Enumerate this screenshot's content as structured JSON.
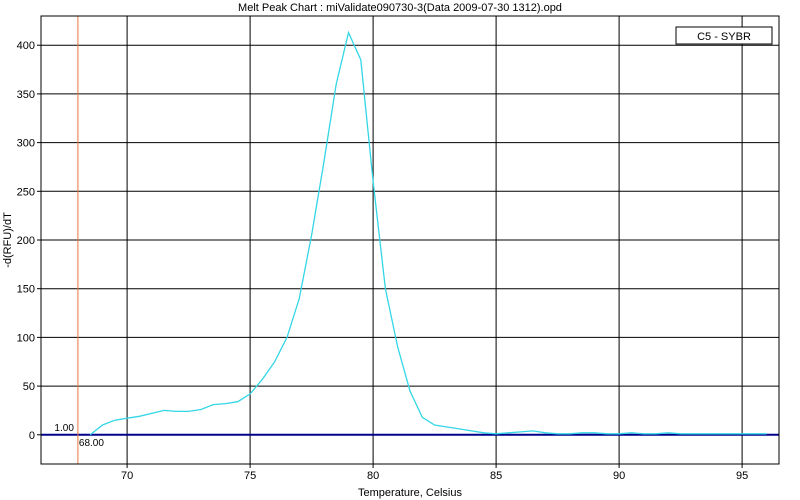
{
  "chart_data": {
    "type": "line",
    "title": "Melt Peak Chart : miValidate090730-3(Data 2009-07-30 1312).opd",
    "xlabel": "Temperature, Celsius",
    "ylabel": "-d(RFU)/dT",
    "xlim": [
      66.5,
      96.5
    ],
    "ylim": [
      -30,
      430
    ],
    "xticks": [
      70,
      75,
      80,
      85,
      90,
      95
    ],
    "yticks": [
      0,
      50,
      100,
      150,
      200,
      250,
      300,
      350,
      400
    ],
    "grid": true,
    "legend_position": "top-right",
    "colors": {
      "series": "#33d6e6",
      "baseline": "#00008b",
      "marker": "#e8783c",
      "grid": "#000000"
    },
    "series": [
      {
        "name": "C5 - SYBR",
        "x": [
          68.5,
          69.0,
          69.5,
          70.0,
          70.5,
          71.0,
          71.5,
          72.0,
          72.5,
          73.0,
          73.5,
          74.0,
          74.5,
          75.0,
          75.5,
          76.0,
          76.5,
          77.0,
          77.5,
          78.0,
          78.5,
          79.0,
          79.5,
          80.0,
          80.5,
          81.0,
          81.5,
          82.0,
          82.5,
          83.0,
          83.5,
          84.0,
          84.5,
          85.0,
          85.5,
          86.0,
          86.5,
          87.0,
          87.5,
          88.0,
          88.5,
          89.0,
          89.5,
          90.0,
          90.5,
          91.0,
          91.5,
          92.0,
          92.5,
          93.0,
          93.5,
          94.0,
          94.5,
          95.0,
          95.5,
          96.0
        ],
        "y": [
          0,
          10,
          15,
          17,
          19,
          22,
          25,
          24,
          24,
          26,
          31,
          32,
          34,
          42,
          57,
          75,
          100,
          140,
          205,
          280,
          360,
          413,
          385,
          260,
          150,
          90,
          45,
          18,
          10,
          8,
          6,
          4,
          2,
          1,
          2,
          3,
          4,
          2,
          1,
          1,
          2,
          2,
          1,
          1,
          2,
          1,
          1,
          2,
          1,
          1,
          1,
          1,
          1,
          1,
          1,
          1
        ]
      }
    ],
    "baseline": {
      "value": 0
    },
    "marker": {
      "x": 68.0,
      "x_label": "68.00",
      "y_label": "1.00"
    }
  }
}
